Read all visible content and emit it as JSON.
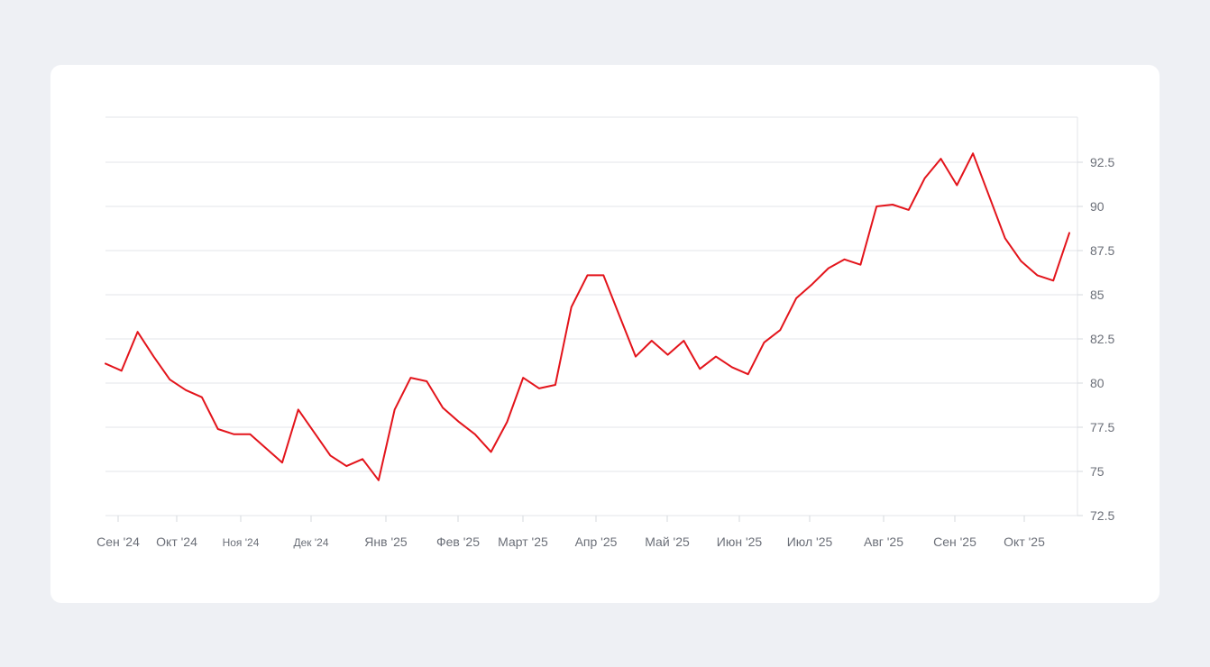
{
  "chart_data": {
    "type": "line",
    "title": "",
    "xlabel": "",
    "ylabel": "",
    "ylim": [
      71.5,
      94
    ],
    "y_ticks": [
      "72.5",
      "75",
      "77.5",
      "80",
      "82.5",
      "85",
      "87.5",
      "90",
      "92.5"
    ],
    "x_ticks": [
      {
        "label": "Сен '24",
        "small": false
      },
      {
        "label": "Окт '24",
        "small": false
      },
      {
        "label": "Ноя '24",
        "small": true
      },
      {
        "label": "Дек '24",
        "small": true
      },
      {
        "label": "Янв '25",
        "small": false
      },
      {
        "label": "Фев '25",
        "small": false
      },
      {
        "label": "Март '25",
        "small": false
      },
      {
        "label": "Апр '25",
        "small": false
      },
      {
        "label": "Май '25",
        "small": false
      },
      {
        "label": "Июн '25",
        "small": false
      },
      {
        "label": "Июл '25",
        "small": false
      },
      {
        "label": "Авг '25",
        "small": false
      },
      {
        "label": "Сен '25",
        "small": false
      },
      {
        "label": "Окт '25",
        "small": false
      }
    ],
    "grid": true,
    "legend": "none",
    "series": [
      {
        "color": "#e3141b",
        "values": [
          81.1,
          80.7,
          82.9,
          81.5,
          80.2,
          79.6,
          79.2,
          77.4,
          77.1,
          77.1,
          76.3,
          75.5,
          78.5,
          77.2,
          75.9,
          75.3,
          75.7,
          74.5,
          78.5,
          80.3,
          80.1,
          78.6,
          77.8,
          77.1,
          76.1,
          77.8,
          80.3,
          79.7,
          79.9,
          84.3,
          86.1,
          86.1,
          83.8,
          81.5,
          82.4,
          81.6,
          82.4,
          80.8,
          81.5,
          80.9,
          80.5,
          82.3,
          83.0,
          84.8,
          85.6,
          86.5,
          87.0,
          86.7,
          90.0,
          90.1,
          89.8,
          91.6,
          92.7,
          91.2,
          93.0,
          90.6,
          88.2,
          86.9,
          86.1,
          85.8,
          88.5
        ]
      }
    ]
  }
}
